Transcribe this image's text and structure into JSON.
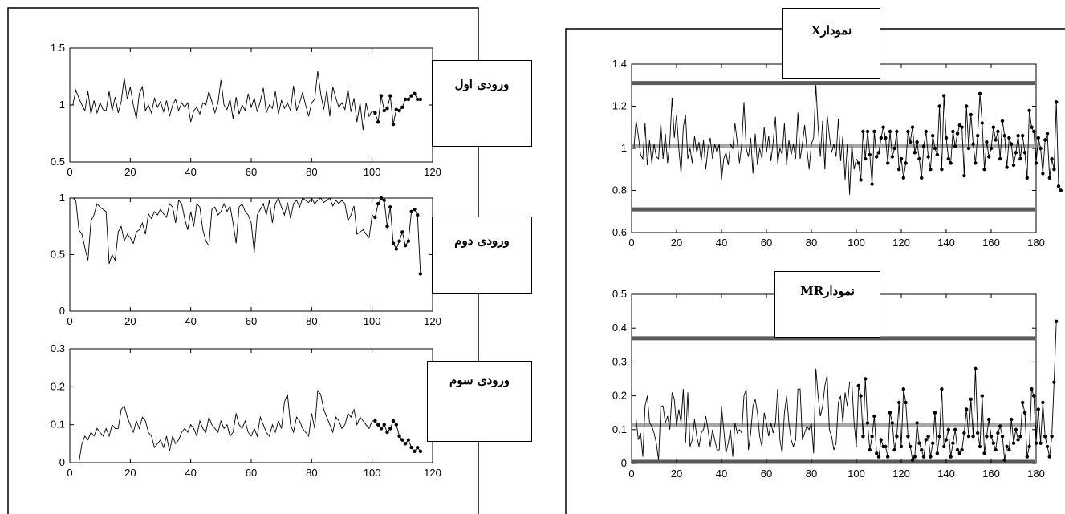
{
  "input_labels": [
    "ورودی اول",
    "ورودی دوم",
    "ورودی سوم"
  ],
  "x_chart_label": "نمودارX",
  "mr_chart_label": "نمودارMR",
  "colors": {
    "line": "#000000",
    "center_line": "#a6a6a6",
    "control_limit": "#595959"
  },
  "chart_data": [
    {
      "type": "line",
      "xlim": [
        0,
        120
      ],
      "ylim": [
        0.5,
        1.5
      ],
      "xticks": [
        "0",
        "20",
        "40",
        "60",
        "80",
        "100",
        "120"
      ],
      "yticks": [
        "0.5",
        "1",
        "1.5"
      ],
      "title": "",
      "xlabel": "",
      "ylabel": "",
      "series": [
        {
          "x_start": 1,
          "values": [
            1.0,
            1.13,
            1.06,
            1.0,
            0.95,
            1.12,
            0.92,
            1.04,
            0.93,
            1.02,
            0.96,
            0.95,
            1.12,
            0.95,
            1.07,
            0.93,
            1.03,
            1.24,
            1.05,
            1.16,
            1.0,
            0.88,
            1.1,
            1.16,
            0.95,
            1.0,
            0.93,
            1.06,
            0.98,
            1.03,
            0.94,
            1.04,
            0.9,
            1.0,
            1.05,
            0.95,
            1.02,
            0.98,
            1.02,
            0.85,
            0.95,
            0.98,
            0.92,
            1.02,
            1.0,
            1.12,
            1.03,
            0.93,
            1.02,
            1.22,
            1.0,
            0.96,
            1.05,
            0.88,
            1.07,
            0.92,
            1.0,
            0.95,
            1.1,
            0.98,
            1.06,
            0.94,
            1.03,
            1.15,
            0.93,
            1.0,
            0.97,
            1.12,
            0.92,
            1.04,
            0.97,
            1.02,
            0.95,
            1.17,
            0.95,
            1.02,
            1.11,
            1.0,
            0.9,
            1.02,
            1.05,
            1.3,
            1.1,
            0.96,
            1.13,
            0.9,
            1.16,
            1.06,
            0.98,
            1.02,
            0.96,
            1.14,
            0.94,
            1.06,
            0.85,
            1.02,
            0.78,
            1.02,
            0.9,
            0.95
          ]
        },
        {
          "x_start": 101,
          "markers": true,
          "values": [
            0.93,
            0.85,
            1.08,
            0.95,
            0.97,
            1.08,
            0.83,
            0.96,
            0.95,
            0.98,
            1.05,
            1.05,
            1.08,
            1.1,
            1.05,
            1.05
          ]
        }
      ]
    },
    {
      "type": "line",
      "xlim": [
        0,
        120
      ],
      "ylim": [
        0,
        1
      ],
      "xticks": [
        "0",
        "20",
        "40",
        "60",
        "80",
        "100",
        "120"
      ],
      "yticks": [
        "0",
        "0.5",
        "1"
      ],
      "title": "",
      "xlabel": "",
      "ylabel": "",
      "series": [
        {
          "x_start": 1,
          "values": [
            1.0,
            0.98,
            0.72,
            0.68,
            0.56,
            0.45,
            0.8,
            0.85,
            0.95,
            0.92,
            0.9,
            0.88,
            0.42,
            0.5,
            0.45,
            0.7,
            0.75,
            0.62,
            0.68,
            0.65,
            0.6,
            0.7,
            0.72,
            0.78,
            0.68,
            0.86,
            0.82,
            0.88,
            0.85,
            0.9,
            0.86,
            0.83,
            0.95,
            0.92,
            0.78,
            0.98,
            0.95,
            0.82,
            0.72,
            0.88,
            0.75,
            0.95,
            0.92,
            0.72,
            0.62,
            0.58,
            0.9,
            0.92,
            0.85,
            0.88,
            0.95,
            0.88,
            0.93,
            0.78,
            0.6,
            0.92,
            0.95,
            0.88,
            0.85,
            0.78,
            0.52,
            0.85,
            0.9,
            0.95,
            0.85,
            0.98,
            0.78,
            0.95,
            1.0,
            0.92,
            0.85,
            0.96,
            0.82,
            0.95,
            0.98,
            0.92,
            1.0,
            0.98,
            0.96,
            1.0,
            0.95,
            0.98,
            1.0,
            0.96,
            0.98,
            1.0,
            0.93,
            0.98,
            0.95,
            0.98,
            0.95,
            0.8,
            0.85,
            0.93,
            0.68,
            0.7,
            0.72,
            0.68,
            0.65,
            0.85
          ]
        },
        {
          "x_start": 101,
          "markers": true,
          "values": [
            0.83,
            0.95,
            1.0,
            0.98,
            0.75,
            0.92,
            0.6,
            0.55,
            0.62,
            0.7,
            0.58,
            0.62,
            0.88,
            0.9,
            0.85,
            0.33
          ]
        }
      ]
    },
    {
      "type": "line",
      "xlim": [
        0,
        120
      ],
      "ylim": [
        0,
        0.3
      ],
      "xticks": [
        "0",
        "20",
        "40",
        "60",
        "80",
        "100",
        "120"
      ],
      "yticks": [
        "0",
        "0.1",
        "0.2",
        "0.3"
      ],
      "title": "",
      "xlabel": "",
      "ylabel": "",
      "series": [
        {
          "x_start": 3,
          "values": [
            0.0,
            0.05,
            0.07,
            0.06,
            0.08,
            0.07,
            0.09,
            0.08,
            0.07,
            0.09,
            0.07,
            0.1,
            0.09,
            0.09,
            0.14,
            0.15,
            0.12,
            0.1,
            0.08,
            0.11,
            0.09,
            0.12,
            0.11,
            0.08,
            0.07,
            0.04,
            0.05,
            0.06,
            0.04,
            0.07,
            0.03,
            0.07,
            0.05,
            0.06,
            0.08,
            0.09,
            0.08,
            0.1,
            0.09,
            0.07,
            0.11,
            0.09,
            0.08,
            0.12,
            0.1,
            0.09,
            0.08,
            0.11,
            0.09,
            0.1,
            0.07,
            0.08,
            0.13,
            0.1,
            0.09,
            0.11,
            0.08,
            0.07,
            0.09,
            0.07,
            0.12,
            0.1,
            0.08,
            0.07,
            0.1,
            0.08,
            0.11,
            0.09,
            0.16,
            0.18,
            0.1,
            0.08,
            0.12,
            0.11,
            0.09,
            0.08,
            0.07,
            0.13,
            0.09,
            0.19,
            0.18,
            0.14,
            0.12,
            0.1,
            0.08,
            0.12,
            0.11,
            0.09,
            0.1,
            0.13,
            0.12,
            0.14,
            0.1,
            0.12,
            0.11,
            0.1,
            0.09,
            0.11
          ]
        },
        {
          "x_start": 101,
          "markers": true,
          "values": [
            0.11,
            0.1,
            0.09,
            0.1,
            0.08,
            0.09,
            0.11,
            0.1,
            0.07,
            0.06,
            0.05,
            0.06,
            0.04,
            0.03,
            0.04,
            0.03
          ]
        }
      ]
    },
    {
      "type": "line",
      "xlim": [
        0,
        180
      ],
      "ylim": [
        0.6,
        1.4
      ],
      "xticks": [
        "0",
        "20",
        "40",
        "60",
        "80",
        "100",
        "120",
        "140",
        "160",
        "180"
      ],
      "yticks": [
        "0.6",
        "0.8",
        "1",
        "1.2",
        "1.4"
      ],
      "center_line": 1.01,
      "ucl": 1.31,
      "lcl": 0.71,
      "title": "",
      "xlabel": "",
      "ylabel": "",
      "series": [
        {
          "x_start": 1,
          "values": [
            1.0,
            1.13,
            1.06,
            0.97,
            0.95,
            1.12,
            0.92,
            1.04,
            0.93,
            1.02,
            0.96,
            0.95,
            1.12,
            0.95,
            1.07,
            0.93,
            1.03,
            1.24,
            1.05,
            1.16,
            1.0,
            0.88,
            1.1,
            1.16,
            0.95,
            1.0,
            0.93,
            1.06,
            0.98,
            1.03,
            0.94,
            1.04,
            0.9,
            1.0,
            1.05,
            0.95,
            1.02,
            0.98,
            1.02,
            0.85,
            0.95,
            0.98,
            0.92,
            1.02,
            1.0,
            1.12,
            1.03,
            0.93,
            1.02,
            1.22,
            1.0,
            0.96,
            1.05,
            0.88,
            1.07,
            0.92,
            1.0,
            0.95,
            1.1,
            0.98,
            1.06,
            0.94,
            1.03,
            1.15,
            0.93,
            1.0,
            0.97,
            1.12,
            0.92,
            1.04,
            0.97,
            1.02,
            0.95,
            1.17,
            0.95,
            1.02,
            1.11,
            1.0,
            0.9,
            1.02,
            1.05,
            1.3,
            1.1,
            0.96,
            1.13,
            0.9,
            1.16,
            1.06,
            0.98,
            1.02,
            0.96,
            1.14,
            0.94,
            1.06,
            0.85,
            1.02,
            0.78,
            1.02,
            0.9,
            0.95
          ]
        },
        {
          "x_start": 101,
          "markers": true,
          "values": [
            0.93,
            0.85,
            1.08,
            0.95,
            1.08,
            0.97,
            0.83,
            1.08,
            0.96,
            0.98,
            1.05,
            1.1,
            1.05,
            0.93,
            1.08,
            0.96,
            1.0,
            1.08,
            0.9,
            0.95,
            0.86,
            0.93,
            1.08,
            1.03,
            1.1,
            0.98,
            1.03,
            0.95,
            0.86,
            1.01,
            1.08,
            0.96,
            0.9,
            1.06,
            1.0,
            0.97,
            1.2,
            0.9,
            1.25,
            1.05,
            0.95,
            0.93,
            1.08,
            1.01,
            1.07,
            1.11,
            1.1,
            0.87,
            1.2,
            1.0,
            1.16,
            1.02,
            0.93,
            1.06,
            1.26,
            1.12,
            0.9,
            1.03,
            0.96,
            1.0,
            1.1,
            1.04,
            1.08,
            0.95,
            1.13,
            1.06,
            0.91,
            1.05,
            1.02,
            0.92,
            0.98,
            1.06,
            0.95,
            1.06,
            0.98,
            0.86,
            1.18,
            1.1,
            1.08,
            0.93,
            1.05,
            1.0,
            0.88,
            1.04,
            1.07,
            0.86,
            0.95,
            0.9,
            1.22,
            0.82,
            0.8
          ]
        }
      ]
    },
    {
      "type": "line",
      "xlim": [
        0,
        180
      ],
      "ylim": [
        0,
        0.5
      ],
      "xticks": [
        "0",
        "20",
        "40",
        "60",
        "80",
        "100",
        "120",
        "140",
        "160",
        "180"
      ],
      "yticks": [
        "0",
        "0.1",
        "0.2",
        "0.3",
        "0.4",
        "0.5"
      ],
      "center_line": 0.113,
      "ucl": 0.37,
      "lcl": 0.0,
      "title": "",
      "xlabel": "",
      "ylabel": "",
      "series": [
        {
          "x_start": 2,
          "values": [
            0.13,
            0.07,
            0.09,
            0.02,
            0.17,
            0.2,
            0.12,
            0.11,
            0.09,
            0.06,
            0.01,
            0.17,
            0.17,
            0.12,
            0.14,
            0.1,
            0.21,
            0.19,
            0.11,
            0.16,
            0.12,
            0.22,
            0.06,
            0.21,
            0.05,
            0.07,
            0.13,
            0.08,
            0.05,
            0.09,
            0.1,
            0.14,
            0.1,
            0.05,
            0.1,
            0.07,
            0.04,
            0.04,
            0.17,
            0.1,
            0.03,
            0.06,
            0.1,
            0.02,
            0.12,
            0.09,
            0.1,
            0.09,
            0.2,
            0.22,
            0.04,
            0.09,
            0.17,
            0.19,
            0.15,
            0.08,
            0.05,
            0.15,
            0.12,
            0.08,
            0.12,
            0.09,
            0.12,
            0.22,
            0.07,
            0.03,
            0.15,
            0.2,
            0.12,
            0.07,
            0.05,
            0.07,
            0.22,
            0.22,
            0.07,
            0.09,
            0.11,
            0.1,
            0.12,
            0.03,
            0.28,
            0.2,
            0.14,
            0.17,
            0.23,
            0.26,
            0.1,
            0.08,
            0.04,
            0.06,
            0.18,
            0.2,
            0.12,
            0.21,
            0.17,
            0.24,
            0.24,
            0.12,
            0.05
          ]
        },
        {
          "x_start": 101,
          "markers": true,
          "values": [
            0.23,
            0.2,
            0.08,
            0.25,
            0.12,
            0.04,
            0.08,
            0.14,
            0.03,
            0.02,
            0.07,
            0.05,
            0.05,
            0.02,
            0.15,
            0.12,
            0.04,
            0.08,
            0.18,
            0.05,
            0.22,
            0.18,
            0.08,
            0.05,
            0.01,
            0.02,
            0.12,
            0.06,
            0.04,
            0.02,
            0.07,
            0.08,
            0.02,
            0.06,
            0.15,
            0.03,
            0.08,
            0.22,
            0.05,
            0.07,
            0.1,
            0.02,
            0.06,
            0.1,
            0.04,
            0.03,
            0.04,
            0.09,
            0.16,
            0.08,
            0.19,
            0.08,
            0.28,
            0.09,
            0.05,
            0.2,
            0.03,
            0.08,
            0.13,
            0.08,
            0.06,
            0.04,
            0.09,
            0.11,
            0.08,
            0.01,
            0.05,
            0.04,
            0.13,
            0.06,
            0.1,
            0.07,
            0.08,
            0.18,
            0.15,
            0.02,
            0.05,
            0.22,
            0.2,
            0.06,
            0.16,
            0.06,
            0.18,
            0.08,
            0.05,
            0.02,
            0.08,
            0.24,
            0.42
          ]
        }
      ]
    }
  ]
}
